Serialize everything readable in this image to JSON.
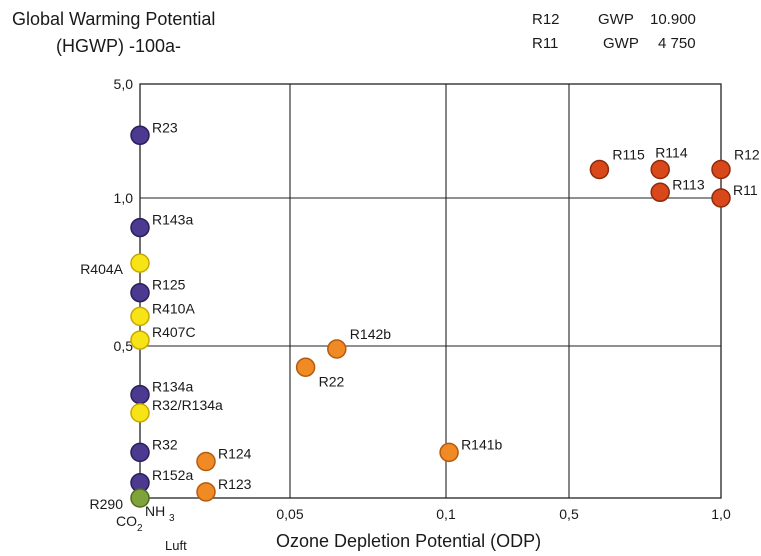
{
  "chart_data": {
    "type": "scatter",
    "title_line1": "Global Warming Potential",
    "title_line2": "(HGWP) -100a-",
    "xlabel": "Ozone Depletion Potential (ODP)",
    "ylabel": "",
    "grid": true,
    "reference_values": [
      {
        "name": "R12",
        "label": "GWP",
        "value": "10.900"
      },
      {
        "name": "R11",
        "label": "GWP",
        "value": "4 750"
      }
    ],
    "x_ticks": [
      "",
      "0,05",
      "0,1",
      "0,5",
      "1,0"
    ],
    "y_ticks": [
      "5,0",
      "1,0",
      "0,5",
      ""
    ],
    "x_scale": "piecewise",
    "x_tick_values": [
      0,
      0.05,
      0.1,
      0.5,
      1.0
    ],
    "y_scale": "piecewise",
    "y_tick_values": [
      0,
      0.5,
      1.0,
      5.0
    ],
    "bottom_labels": [
      "NH",
      "3",
      "CO",
      "2",
      "Luft"
    ],
    "colors": {
      "purple": "#4b3a8f",
      "yellow": "#f7e416",
      "orange": "#f08a24",
      "red": "#d9481a",
      "green": "#7fa33a"
    },
    "points": [
      {
        "name": "R23",
        "x": 0.0,
        "y": 3.2,
        "color": "purple",
        "label_side": "right"
      },
      {
        "name": "R143a",
        "x": 0.0,
        "y": 0.9,
        "color": "purple",
        "label_side": "right"
      },
      {
        "name": "R404A",
        "x": 0.0,
        "y": 0.78,
        "color": "yellow",
        "label_side": "left"
      },
      {
        "name": "R125",
        "x": 0.0,
        "y": 0.68,
        "color": "purple",
        "label_side": "right"
      },
      {
        "name": "R410A",
        "x": 0.0,
        "y": 0.6,
        "color": "yellow",
        "label_side": "right"
      },
      {
        "name": "R407C",
        "x": 0.0,
        "y": 0.52,
        "color": "yellow",
        "label_side": "right"
      },
      {
        "name": "R134a",
        "x": 0.0,
        "y": 0.34,
        "color": "purple",
        "label_side": "right"
      },
      {
        "name": "R32/R134a",
        "x": 0.0,
        "y": 0.28,
        "color": "yellow",
        "label_side": "right"
      },
      {
        "name": "R32",
        "x": 0.0,
        "y": 0.15,
        "color": "purple",
        "label_side": "right"
      },
      {
        "name": "R152a",
        "x": 0.0,
        "y": 0.05,
        "color": "purple",
        "label_side": "right"
      },
      {
        "name": "R290",
        "x": 0.0,
        "y": 0.0,
        "color": "green",
        "label_side": "left"
      },
      {
        "name": "R124",
        "x": 0.022,
        "y": 0.12,
        "color": "orange",
        "label_side": "right"
      },
      {
        "name": "R123",
        "x": 0.022,
        "y": 0.02,
        "color": "orange",
        "label_side": "right"
      },
      {
        "name": "R22",
        "x": 0.055,
        "y": 0.43,
        "color": "orange",
        "label_side": "below-right"
      },
      {
        "name": "R142b",
        "x": 0.065,
        "y": 0.49,
        "color": "orange",
        "label_side": "above-right"
      },
      {
        "name": "R141b",
        "x": 0.11,
        "y": 0.15,
        "color": "orange",
        "label_side": "right"
      },
      {
        "name": "R115",
        "x": 0.6,
        "y": 2.0,
        "color": "red",
        "label_side": "above-right"
      },
      {
        "name": "R114",
        "x": 0.8,
        "y": 2.0,
        "color": "red",
        "label_side": "above"
      },
      {
        "name": "R12",
        "x": 1.0,
        "y": 2.0,
        "color": "red",
        "label_side": "above-right"
      },
      {
        "name": "R113",
        "x": 0.8,
        "y": 1.2,
        "color": "red",
        "label_side": "right"
      },
      {
        "name": "R11",
        "x": 1.0,
        "y": 1.0,
        "color": "red",
        "label_side": "right"
      }
    ]
  }
}
